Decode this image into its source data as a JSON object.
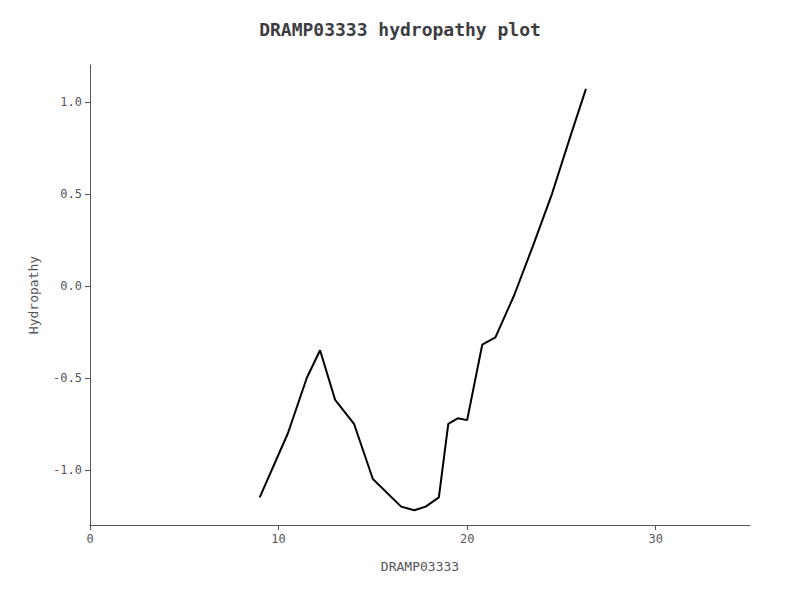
{
  "chart_data": {
    "type": "line",
    "title": "DRAMP03333 hydropathy plot",
    "xlabel": "DRAMP03333",
    "ylabel": "Hydropathy",
    "x": [
      9.0,
      10.5,
      11.5,
      12.2,
      13.0,
      14.0,
      15.0,
      16.5,
      17.2,
      17.8,
      18.5,
      19.0,
      19.5,
      20.0,
      20.8,
      21.5,
      22.5,
      23.5,
      24.5,
      25.5,
      26.3
    ],
    "values": [
      -1.15,
      -0.8,
      -0.5,
      -0.35,
      -0.62,
      -0.75,
      -1.05,
      -1.2,
      -1.22,
      -1.2,
      -1.15,
      -0.75,
      -0.72,
      -0.73,
      -0.32,
      -0.28,
      -0.05,
      0.22,
      0.5,
      0.82,
      1.07
    ],
    "color": "#000000",
    "xlim": [
      0,
      35
    ],
    "ylim": [
      -1.3,
      1.2
    ],
    "xticks": [
      0,
      10,
      20,
      30
    ],
    "yticks": [
      {
        "value": -1.0,
        "label": "-1.0"
      },
      -0.5,
      {
        "value": 0.0,
        "label": "0.0"
      },
      0.5,
      {
        "value": 1.0,
        "label": "1.0"
      }
    ],
    "grid": false
  }
}
